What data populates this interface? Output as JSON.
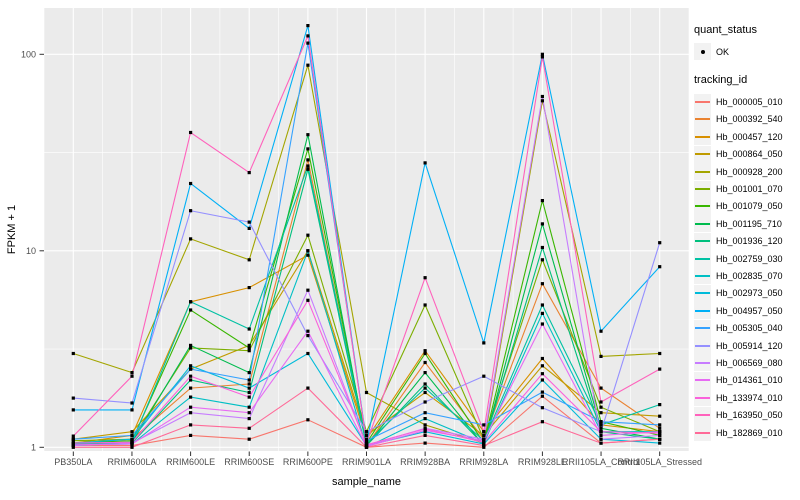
{
  "chart_data": {
    "type": "line",
    "title": "",
    "xlabel": "sample_name",
    "ylabel": "FPKM + 1",
    "y_scale": "log10",
    "yticks": [
      1,
      10,
      100
    ],
    "y_minor": [
      3.162,
      31.62
    ],
    "ylim": [
      0.95,
      172
    ],
    "grid": true,
    "legend_position": "right",
    "categories": [
      "PB350LA",
      "RRIM600LA",
      "RRIM600LE",
      "RRIM600SE",
      "RRIM600PE",
      "RRIM901LA",
      "RRIM928BA",
      "RRIM928LA",
      "RRIM928LE",
      "RRII105LA_Control",
      "RRII105LA_Stressed"
    ],
    "series": [
      {
        "name": "Hb_000005_010",
        "color": "#F8766D",
        "values": [
          1.02,
          1.02,
          1.15,
          1.1,
          1.38,
          1.0,
          1.05,
          1.0,
          1.82,
          1.05,
          1.1
        ]
      },
      {
        "name": "Hb_000392_540",
        "color": "#EA8331",
        "values": [
          1.05,
          1.1,
          2.0,
          2.1,
          29,
          1.02,
          2.7,
          1.1,
          6.8,
          2.0,
          1.25
        ]
      },
      {
        "name": "Hb_000457_120",
        "color": "#D89000",
        "values": [
          1.05,
          1.15,
          5.5,
          6.5,
          9.5,
          1.1,
          3.1,
          1.2,
          2.83,
          1.3,
          1.2
        ]
      },
      {
        "name": "Hb_000864_050",
        "color": "#C09B00",
        "values": [
          1.1,
          1.2,
          2.5,
          3.3,
          10,
          1.15,
          1.9,
          1.15,
          2.6,
          1.5,
          1.44
        ]
      },
      {
        "name": "Hb_000928_200",
        "color": "#A3A500",
        "values": [
          3.0,
          2.4,
          11.5,
          9.0,
          88,
          1.9,
          1.3,
          1.05,
          58,
          2.9,
          3.0
        ]
      },
      {
        "name": "Hb_001001_070",
        "color": "#7CAE00",
        "values": [
          1.08,
          1.1,
          3.2,
          3.1,
          12,
          1.2,
          5.3,
          1.1,
          9.0,
          1.6,
          1.2
        ]
      },
      {
        "name": "Hb_001079_050",
        "color": "#39B600",
        "values": [
          1.05,
          1.08,
          5.0,
          3.2,
          33,
          1.05,
          3.0,
          1.05,
          18,
          1.35,
          1.15
        ]
      },
      {
        "name": "Hb_001195_710",
        "color": "#00BB4E",
        "values": [
          1.03,
          1.06,
          3.3,
          2.4,
          39,
          1.02,
          2.4,
          1.02,
          13.7,
          1.25,
          1.1
        ]
      },
      {
        "name": "Hb_001936_120",
        "color": "#00BF7D",
        "values": [
          1.02,
          1.05,
          2.2,
          1.9,
          26,
          1.02,
          2.1,
          1.03,
          10.4,
          1.2,
          1.1
        ]
      },
      {
        "name": "Hb_002759_030",
        "color": "#00C1A3",
        "values": [
          1.04,
          1.06,
          5.5,
          4.0,
          27,
          1.05,
          2.0,
          1.08,
          5.3,
          1.3,
          1.65
        ]
      },
      {
        "name": "Hb_002835_070",
        "color": "#00BFC4",
        "values": [
          1.03,
          1.04,
          1.8,
          1.6,
          10,
          1.0,
          1.4,
          1.05,
          4.8,
          1.2,
          1.2
        ]
      },
      {
        "name": "Hb_002973_050",
        "color": "#00BBDA",
        "values": [
          1.05,
          1.1,
          2.6,
          2.0,
          3.0,
          1.02,
          1.2,
          1.04,
          2.2,
          1.1,
          1.05
        ]
      },
      {
        "name": "Hb_004957_050",
        "color": "#00B0F6",
        "values": [
          1.55,
          1.55,
          22,
          13,
          140,
          1.05,
          28,
          3.4,
          100,
          3.9,
          8.3
        ]
      },
      {
        "name": "Hb_005305_040",
        "color": "#35A2FF",
        "values": [
          1.1,
          1.15,
          2.5,
          2.2,
          114,
          1.08,
          1.5,
          1.3,
          1.91,
          1.35,
          1.3
        ]
      },
      {
        "name": "Hb_005914_120",
        "color": "#9590FF",
        "values": [
          1.78,
          1.68,
          16,
          14,
          3.7,
          1.2,
          1.7,
          2.3,
          1.59,
          1.2,
          11
        ]
      },
      {
        "name": "Hb_006569_080",
        "color": "#C77CFF",
        "values": [
          1.02,
          1.05,
          1.5,
          1.4,
          6.3,
          1.02,
          1.25,
          1.1,
          61,
          1.1,
          1.15
        ]
      },
      {
        "name": "Hb_014361_010",
        "color": "#E76BF3",
        "values": [
          1.03,
          1.04,
          1.6,
          1.5,
          3.9,
          1.01,
          1.22,
          1.08,
          4.24,
          1.15,
          1.2
        ]
      },
      {
        "name": "Hb_133974_010",
        "color": "#FA62DB",
        "values": [
          1.05,
          1.06,
          2.3,
          1.8,
          5.6,
          1.03,
          1.24,
          1.06,
          2.37,
          1.2,
          1.18
        ]
      },
      {
        "name": "Hb_163950_050",
        "color": "#FF62BC",
        "values": [
          1.14,
          2.3,
          40,
          25,
          124,
          1.05,
          7.3,
          1.2,
          97,
          1.7,
          2.5
        ]
      },
      {
        "name": "Hb_182869_010",
        "color": "#FF6A98",
        "values": [
          1.0,
          1.0,
          1.3,
          1.25,
          2.0,
          1.0,
          1.15,
          1.02,
          1.35,
          1.05,
          1.1
        ]
      }
    ],
    "legend": {
      "quant_status_title": "quant_status",
      "quant_status_items": [
        {
          "label": "OK",
          "shape": "point"
        }
      ],
      "tracking_title": "tracking_id"
    },
    "colors": {
      "panel_bg": "#EBEBEB",
      "grid": "#FFFFFF",
      "point": "#000000",
      "tick_label": "#4D4D4D",
      "axis_title": "#000000",
      "tick_mark": "#333333"
    }
  }
}
